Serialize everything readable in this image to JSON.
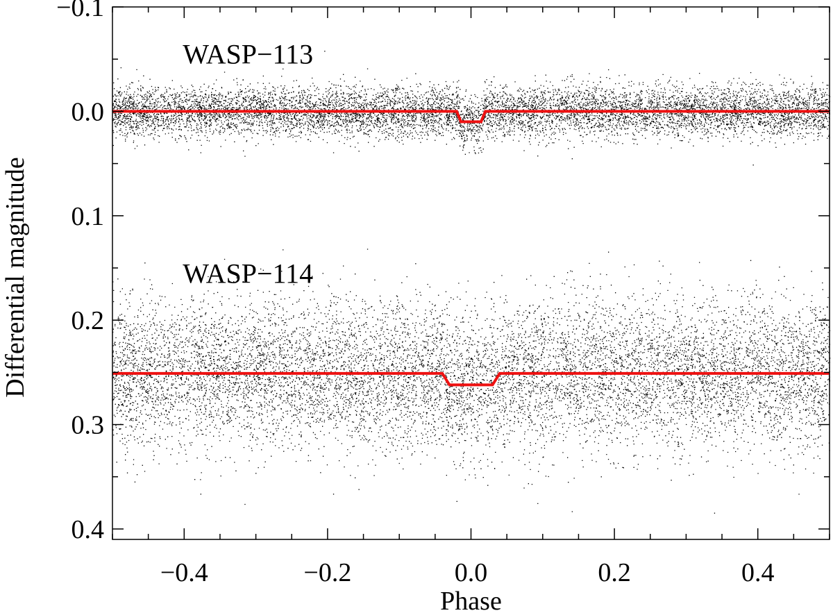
{
  "chart_data": {
    "type": "scatter",
    "title": "",
    "xlabel": "Phase",
    "ylabel": "Differential magnitude",
    "xlim": [
      -0.5,
      0.5
    ],
    "ylim": [
      -0.1,
      0.41
    ],
    "y_inverted": true,
    "grid": false,
    "legend": "none",
    "x_ticks": [
      {
        "value": -0.4,
        "label": "−0.4"
      },
      {
        "value": -0.2,
        "label": "−0.2"
      },
      {
        "value": 0.0,
        "label": "0.0"
      },
      {
        "value": 0.2,
        "label": "0.2"
      },
      {
        "value": 0.4,
        "label": "0.4"
      }
    ],
    "y_ticks": [
      {
        "value": -0.1,
        "label": "−0.1"
      },
      {
        "value": 0.0,
        "label": "0.0"
      },
      {
        "value": 0.1,
        "label": "0.1"
      },
      {
        "value": 0.2,
        "label": "0.2"
      },
      {
        "value": 0.3,
        "label": "0.3"
      },
      {
        "value": 0.4,
        "label": "0.4"
      }
    ],
    "series": [
      {
        "name": "WASP−113",
        "baseline": 0.0,
        "transit_depth": 0.01,
        "transit_center": 0.0,
        "transit_half_width": 0.02,
        "transit_ingress": 0.006,
        "scatter_sigma": 0.012,
        "clip": [
          -0.08,
          0.075
        ],
        "label_at": [
          -0.4,
          -0.055
        ],
        "point_color": "#000000",
        "model_color": "#ee1111"
      },
      {
        "name": "WASP−114",
        "baseline": 0.251,
        "transit_depth": 0.011,
        "transit_center": 0.0,
        "transit_half_width": 0.04,
        "transit_ingress": 0.01,
        "scatter_sigma": 0.035,
        "clip": [
          0.12,
          0.39
        ],
        "label_at": [
          -0.4,
          0.155
        ],
        "point_color": "#000000",
        "model_color": "#ee1111"
      }
    ]
  }
}
